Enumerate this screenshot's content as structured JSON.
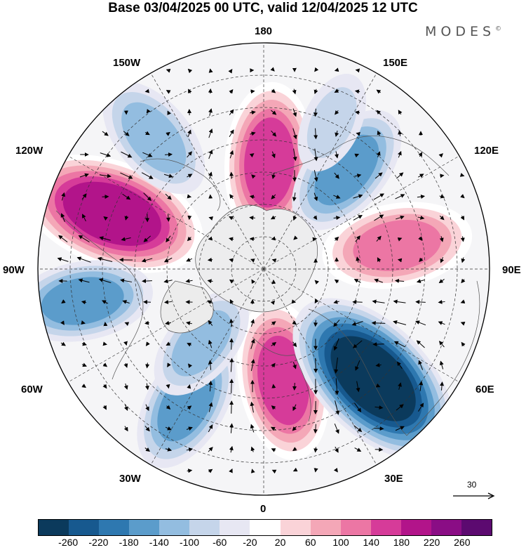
{
  "title": "Base 03/04/2025 00 UTC, valid 12/04/2025 12 UTC",
  "brand": "MODES",
  "brand_mark": "©",
  "longitude_labels": {
    "n180": "180",
    "e150": "150E",
    "w150": "150W",
    "w120": "120W",
    "e120": "120E",
    "w90": "90W",
    "e90": "90E",
    "w60": "60W",
    "e60": "60E",
    "w30": "30W",
    "e30": "30E",
    "s0": "0"
  },
  "reference_vector": {
    "label": "30",
    "icon": "arrow-right-icon"
  },
  "colorbar": {
    "colors": [
      "#0b3a5c",
      "#17598f",
      "#2e78b0",
      "#5b9ccb",
      "#93bde0",
      "#c5d5ea",
      "#e7e7f3",
      "#ffffff",
      "#fad3d8",
      "#f4a7b7",
      "#ec76a4",
      "#d63b99",
      "#b2148a",
      "#8a0d85",
      "#5c0a70"
    ],
    "ticks": [
      "-260",
      "-220",
      "-180",
      "-140",
      "-100",
      "-60",
      "-20",
      "20",
      "60",
      "100",
      "140",
      "180",
      "220",
      "260"
    ]
  },
  "map": {
    "projection": "north polar stereographic",
    "field": "height anomaly (shaded) with wind vectors",
    "anomaly_centers": [
      {
        "lon": 177,
        "lat": 57,
        "value": 180
      },
      {
        "lon": -110,
        "lat": 40,
        "value": 240
      },
      {
        "lon": 100,
        "lat": 48,
        "value": 160
      },
      {
        "lon": 10,
        "lat": 55,
        "value": 180
      },
      {
        "lon": 45,
        "lat": 42,
        "value": -260
      },
      {
        "lon": -30,
        "lat": 42,
        "value": -140
      },
      {
        "lon": -80,
        "lat": 33,
        "value": -140
      },
      {
        "lon": -140,
        "lat": 37,
        "value": -120
      },
      {
        "lon": 140,
        "lat": 50,
        "value": -140
      },
      {
        "lon": -40,
        "lat": 60,
        "value": -100
      },
      {
        "lon": 155,
        "lat": 40,
        "value": -60
      }
    ]
  }
}
